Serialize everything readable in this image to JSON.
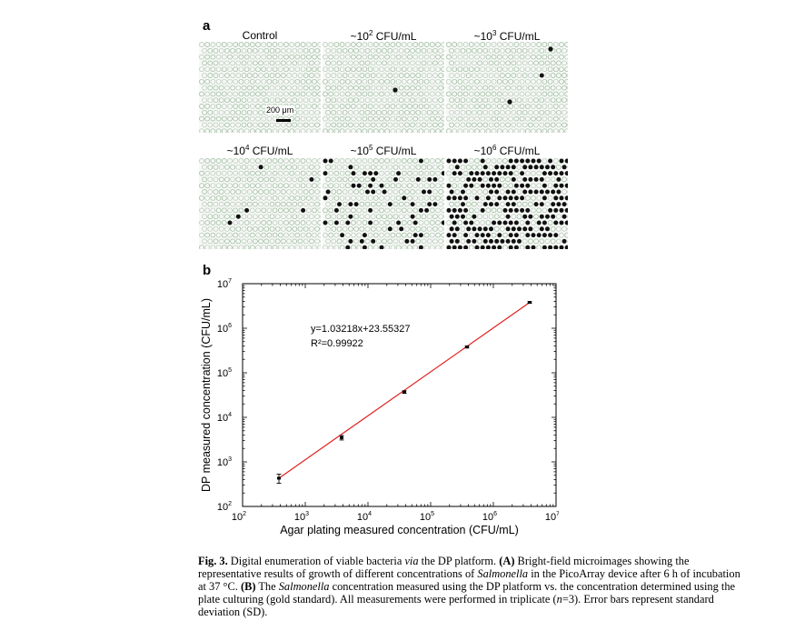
{
  "panel_a": {
    "letter": "a",
    "tiles": [
      {
        "label": "Control",
        "label_main": "Control",
        "label_exp": ""
      },
      {
        "label": "~10^2 CFU/mL",
        "label_main": "~10",
        "label_exp": "2",
        "label_unit": " CFU/mL"
      },
      {
        "label": "~10^3 CFU/mL",
        "label_main": "~10",
        "label_exp": "3",
        "label_unit": " CFU/mL"
      },
      {
        "label": "~10^4 CFU/mL",
        "label_main": "~10",
        "label_exp": "4",
        "label_unit": " CFU/mL"
      },
      {
        "label": "~10^5 CFU/mL",
        "label_main": "~10",
        "label_exp": "5",
        "label_unit": " CFU/mL"
      },
      {
        "label": "~10^6 CFU/mL",
        "label_main": "~10",
        "label_exp": "6",
        "label_unit": " CFU/mL"
      }
    ],
    "scale_bar": "200 μm"
  },
  "panel_b": {
    "letter": "b"
  },
  "chart_data": {
    "type": "scatter",
    "xlabel": "Agar plating measured concentration (CFU/mL)",
    "ylabel": "DP measured concentration (CFU/mL)",
    "x_scale": "log",
    "y_scale": "log",
    "xlim": [
      100,
      10000000
    ],
    "ylim": [
      100,
      10000000
    ],
    "x_ticks": [
      "10^2",
      "10^3",
      "10^4",
      "10^5",
      "10^6",
      "10^7"
    ],
    "y_ticks": [
      "10^2",
      "10^3",
      "10^4",
      "10^5",
      "10^6",
      "10^7"
    ],
    "series": [
      {
        "points": [
          {
            "x": 380,
            "y": 430,
            "err": 100
          },
          {
            "x": 3800,
            "y": 3500,
            "err": 400
          },
          {
            "x": 38000,
            "y": 37000,
            "err": 2500
          },
          {
            "x": 380000,
            "y": 380000,
            "err": 20000
          },
          {
            "x": 3800000,
            "y": 3800000,
            "err": 150000
          }
        ]
      }
    ],
    "fit_line": {
      "color": "#e02020",
      "x_range": [
        380,
        3800000
      ]
    },
    "annotation": {
      "equation": "y=1.03218x+23.55327",
      "r2": "R²=0.99922"
    },
    "grid": false
  },
  "caption": {
    "fig": "Fig. 3.",
    "text_1": " Digital enumeration of viable bacteria ",
    "via": "via",
    "text_2": " the DP platform. ",
    "A": "(A)",
    "text_3": " Bright-field microimages showing the representative results of growth of different concentrations of ",
    "salmonella_1": "Salmonella",
    "text_4": " in the PicoArray device after 6 h of incubation at 37 °C. ",
    "B": "(B)",
    "text_5": " The ",
    "salmonella_2": "Salmonella",
    "text_6": " concentration measured using the DP platform vs. the concentration determined using the plate culturing (gold standard). All measurements were performed in triplicate (",
    "n": "n",
    "text_7": "=3). Error bars represent standard deviation (SD)."
  }
}
